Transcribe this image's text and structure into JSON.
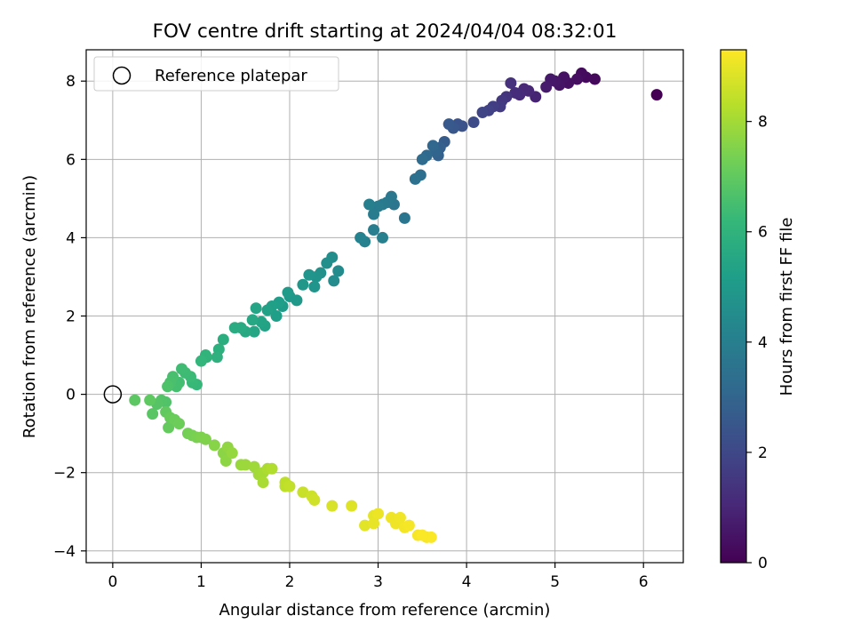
{
  "chart_data": {
    "type": "scatter",
    "title": "FOV centre drift starting at 2024/04/04 08:32:01",
    "xlabel": "Angular distance from reference (arcmin)",
    "ylabel": "Rotation from reference (arcmin)",
    "xlim": [
      -0.3,
      6.45
    ],
    "ylim": [
      -4.3,
      8.8
    ],
    "xticks": [
      0,
      1,
      2,
      3,
      4,
      5,
      6
    ],
    "yticks": [
      -4,
      -2,
      0,
      2,
      4,
      6,
      8
    ],
    "grid": true,
    "legend": {
      "placement": "top-left",
      "entries": [
        "Reference platepar"
      ]
    },
    "reference_point": {
      "name": "Reference platepar",
      "x": 0,
      "y": 0
    },
    "colorbar": {
      "label": "Hours from first FF file",
      "colormap": "viridis",
      "range": [
        0,
        9.3
      ],
      "ticks": [
        0,
        2,
        4,
        6,
        8
      ]
    },
    "colormap_stops": [
      "#440154",
      "#482878",
      "#3e4a89",
      "#31688e",
      "#26828e",
      "#1f9e89",
      "#35b779",
      "#6ece58",
      "#b5de2b",
      "#fde725"
    ],
    "points": [
      [
        6.15,
        7.65,
        0.0
      ],
      [
        5.45,
        8.05,
        0.2
      ],
      [
        5.35,
        8.1,
        0.25
      ],
      [
        5.3,
        8.2,
        0.3
      ],
      [
        5.25,
        8.05,
        0.35
      ],
      [
        5.15,
        7.95,
        0.4
      ],
      [
        5.1,
        8.1,
        0.45
      ],
      [
        5.05,
        7.9,
        0.5
      ],
      [
        5.0,
        8.0,
        0.55
      ],
      [
        4.95,
        8.05,
        0.6
      ],
      [
        4.9,
        7.85,
        0.7
      ],
      [
        4.78,
        7.6,
        0.9
      ],
      [
        4.7,
        7.75,
        1.0
      ],
      [
        4.65,
        7.8,
        1.05
      ],
      [
        4.6,
        7.65,
        1.1
      ],
      [
        4.55,
        7.7,
        1.2
      ],
      [
        4.5,
        7.95,
        1.3
      ],
      [
        4.45,
        7.6,
        1.4
      ],
      [
        4.4,
        7.5,
        1.5
      ],
      [
        4.38,
        7.35,
        1.6
      ],
      [
        4.3,
        7.35,
        1.7
      ],
      [
        4.25,
        7.25,
        1.8
      ],
      [
        4.18,
        7.2,
        1.9
      ],
      [
        4.08,
        6.95,
        2.1
      ],
      [
        3.95,
        6.85,
        2.3
      ],
      [
        3.9,
        6.9,
        2.4
      ],
      [
        3.85,
        6.8,
        2.5
      ],
      [
        3.8,
        6.9,
        2.6
      ],
      [
        3.75,
        6.45,
        2.7
      ],
      [
        3.7,
        6.3,
        2.8
      ],
      [
        3.68,
        6.1,
        2.9
      ],
      [
        3.65,
        6.2,
        3.0
      ],
      [
        3.62,
        6.35,
        3.05
      ],
      [
        3.55,
        6.1,
        3.15
      ],
      [
        3.5,
        6.0,
        3.25
      ],
      [
        3.48,
        5.6,
        3.35
      ],
      [
        3.42,
        5.5,
        3.45
      ],
      [
        3.3,
        4.5,
        3.6
      ],
      [
        3.18,
        4.85,
        3.65
      ],
      [
        3.15,
        5.05,
        3.7
      ],
      [
        3.1,
        4.9,
        3.75
      ],
      [
        3.05,
        4.85,
        3.8
      ],
      [
        3.0,
        4.8,
        3.85
      ],
      [
        2.95,
        4.6,
        3.9
      ],
      [
        2.95,
        4.2,
        3.95
      ],
      [
        2.9,
        4.85,
        4.0
      ],
      [
        3.05,
        4.0,
        4.05
      ],
      [
        2.85,
        3.9,
        4.1
      ],
      [
        2.8,
        4.0,
        4.15
      ],
      [
        2.55,
        3.15,
        4.45
      ],
      [
        2.5,
        2.9,
        4.5
      ],
      [
        2.48,
        3.5,
        4.55
      ],
      [
        2.42,
        3.35,
        4.6
      ],
      [
        2.35,
        3.1,
        4.7
      ],
      [
        2.3,
        3.0,
        4.75
      ],
      [
        2.28,
        2.75,
        4.8
      ],
      [
        2.22,
        3.05,
        4.85
      ],
      [
        2.15,
        2.8,
        4.9
      ],
      [
        2.08,
        2.4,
        4.95
      ],
      [
        2.0,
        2.5,
        5.0
      ],
      [
        1.98,
        2.6,
        5.05
      ],
      [
        1.92,
        2.25,
        5.1
      ],
      [
        1.88,
        2.35,
        5.15
      ],
      [
        1.85,
        2.0,
        5.2
      ],
      [
        1.8,
        2.25,
        5.25
      ],
      [
        1.75,
        2.15,
        5.3
      ],
      [
        1.72,
        1.75,
        5.35
      ],
      [
        1.68,
        1.85,
        5.4
      ],
      [
        1.62,
        2.2,
        5.45
      ],
      [
        1.6,
        1.6,
        5.5
      ],
      [
        1.58,
        1.9,
        5.55
      ],
      [
        1.5,
        1.6,
        5.6
      ],
      [
        1.45,
        1.7,
        5.65
      ],
      [
        1.38,
        1.7,
        5.7
      ],
      [
        1.25,
        1.4,
        5.8
      ],
      [
        1.2,
        1.15,
        5.85
      ],
      [
        1.18,
        0.95,
        5.9
      ],
      [
        1.06,
        0.95,
        6.0
      ],
      [
        1.05,
        1.0,
        6.05
      ],
      [
        1.0,
        0.85,
        6.1
      ],
      [
        0.95,
        0.25,
        6.2
      ],
      [
        0.9,
        0.3,
        6.25
      ],
      [
        0.88,
        0.45,
        6.3
      ],
      [
        0.82,
        0.55,
        6.35
      ],
      [
        0.78,
        0.65,
        6.4
      ],
      [
        0.75,
        0.3,
        6.45
      ],
      [
        0.72,
        0.2,
        6.5
      ],
      [
        0.68,
        0.45,
        6.55
      ],
      [
        0.65,
        0.3,
        6.6
      ],
      [
        0.62,
        0.2,
        6.65
      ],
      [
        0.6,
        -0.2,
        6.7
      ],
      [
        0.55,
        -0.15,
        6.75
      ],
      [
        0.5,
        -0.25,
        6.8
      ],
      [
        0.45,
        -0.5,
        6.85
      ],
      [
        0.25,
        -0.15,
        6.9
      ],
      [
        0.42,
        -0.15,
        6.95
      ],
      [
        0.6,
        -0.45,
        7.0
      ],
      [
        0.63,
        -0.85,
        7.05
      ],
      [
        0.65,
        -0.6,
        7.1
      ],
      [
        0.7,
        -0.65,
        7.15
      ],
      [
        0.75,
        -0.75,
        7.2
      ],
      [
        0.85,
        -1.0,
        7.3
      ],
      [
        0.9,
        -1.05,
        7.35
      ],
      [
        0.95,
        -1.1,
        7.4
      ],
      [
        1.0,
        -1.1,
        7.45
      ],
      [
        1.05,
        -1.15,
        7.5
      ],
      [
        1.15,
        -1.3,
        7.6
      ],
      [
        1.25,
        -1.5,
        7.65
      ],
      [
        1.28,
        -1.7,
        7.7
      ],
      [
        1.3,
        -1.35,
        7.75
      ],
      [
        1.35,
        -1.5,
        7.8
      ],
      [
        1.45,
        -1.8,
        7.85
      ],
      [
        1.5,
        -1.8,
        7.9
      ],
      [
        1.6,
        -1.85,
        7.95
      ],
      [
        1.65,
        -2.05,
        8.0
      ],
      [
        1.7,
        -2.0,
        8.05
      ],
      [
        1.7,
        -2.25,
        8.1
      ],
      [
        1.75,
        -1.9,
        8.15
      ],
      [
        1.8,
        -1.9,
        8.2
      ],
      [
        1.95,
        -2.35,
        8.35
      ],
      [
        1.95,
        -2.25,
        8.4
      ],
      [
        2.0,
        -2.35,
        8.45
      ],
      [
        2.15,
        -2.5,
        8.55
      ],
      [
        2.25,
        -2.6,
        8.6
      ],
      [
        2.28,
        -2.7,
        8.65
      ],
      [
        2.48,
        -2.85,
        8.75
      ],
      [
        2.7,
        -2.85,
        8.85
      ],
      [
        2.85,
        -3.35,
        8.9
      ],
      [
        2.95,
        -3.1,
        8.95
      ],
      [
        2.95,
        -3.3,
        9.0
      ],
      [
        3.0,
        -3.05,
        9.05
      ],
      [
        3.15,
        -3.15,
        9.1
      ],
      [
        3.2,
        -3.3,
        9.1
      ],
      [
        3.25,
        -3.15,
        9.12
      ],
      [
        3.3,
        -3.4,
        9.15
      ],
      [
        3.35,
        -3.35,
        9.18
      ],
      [
        3.45,
        -3.6,
        9.2
      ],
      [
        3.55,
        -3.65,
        9.22
      ],
      [
        3.6,
        -3.65,
        9.25
      ],
      [
        3.5,
        -3.6,
        9.25
      ]
    ]
  }
}
